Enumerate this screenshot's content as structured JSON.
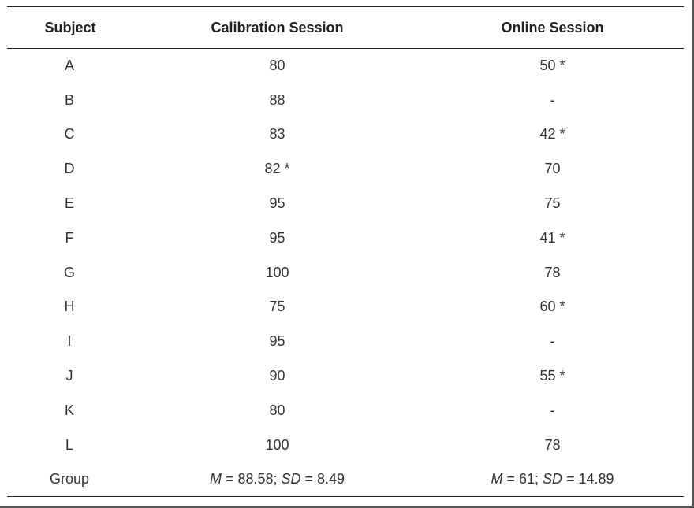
{
  "table": {
    "headers": [
      "Subject",
      "Calibration Session",
      "Online Session"
    ],
    "rows": [
      {
        "subject": "A",
        "calibration": "80",
        "online": "50 *"
      },
      {
        "subject": "B",
        "calibration": "88",
        "online": "-"
      },
      {
        "subject": "C",
        "calibration": "83",
        "online": "42 *"
      },
      {
        "subject": "D",
        "calibration": "82 *",
        "online": "70"
      },
      {
        "subject": "E",
        "calibration": "95",
        "online": "75"
      },
      {
        "subject": "F",
        "calibration": "95",
        "online": "41 *"
      },
      {
        "subject": "G",
        "calibration": "100",
        "online": "78"
      },
      {
        "subject": "H",
        "calibration": "75",
        "online": "60 *"
      },
      {
        "subject": "I",
        "calibration": "95",
        "online": "-"
      },
      {
        "subject": "J",
        "calibration": "90",
        "online": "55 *"
      },
      {
        "subject": "K",
        "calibration": "80",
        "online": "-"
      },
      {
        "subject": "L",
        "calibration": "100",
        "online": "78"
      }
    ],
    "group": {
      "label": "Group",
      "calibration": {
        "m_label": "M",
        "m_value": " = 88.58; ",
        "sd_label": "SD",
        "sd_value": " = 8.49"
      },
      "online": {
        "m_label": "M",
        "m_value": " = 61; ",
        "sd_label": "SD",
        "sd_value": " = 14.89"
      }
    }
  }
}
